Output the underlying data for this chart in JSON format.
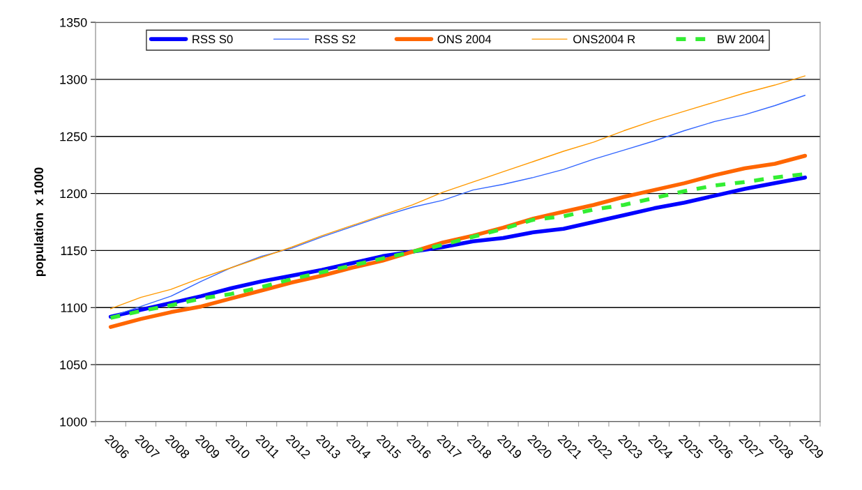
{
  "chart_data": {
    "type": "line",
    "ylabel": "population  x 1000",
    "categories": [
      "2006",
      "2007",
      "2008",
      "2009",
      "2010",
      "2011",
      "2012",
      "2013",
      "2014",
      "2015",
      "2016",
      "2017",
      "2018",
      "2019",
      "2020",
      "2021",
      "2022",
      "2023",
      "2024",
      "2025",
      "2026",
      "2027",
      "2028",
      "2029"
    ],
    "series": [
      {
        "name": "RSS S0",
        "color": "#0000ff",
        "values": [
          1092,
          1098,
          1104,
          1110,
          1117,
          1123,
          1128,
          1133,
          1139,
          1145,
          1149,
          1153,
          1158,
          1161,
          1166,
          1169,
          1175,
          1181,
          1187,
          1192,
          1198,
          1204,
          1209,
          1214
        ]
      },
      {
        "name": "RSS S2",
        "color": "#3366ff",
        "values": [
          1092,
          1101,
          1110,
          1123,
          1135,
          1145,
          1152,
          1162,
          1171,
          1180,
          1188,
          1194,
          1203,
          1208,
          1214,
          1221,
          1230,
          1238,
          1246,
          1255,
          1263,
          1269,
          1277,
          1286
        ]
      },
      {
        "name": "ONS 2004",
        "color": "#ff6600",
        "values": [
          1083,
          1090,
          1096,
          1101,
          1108,
          1115,
          1122,
          1128,
          1135,
          1141,
          1149,
          1157,
          1163,
          1170,
          1178,
          1184,
          1190,
          1197,
          1203,
          1209,
          1216,
          1222,
          1226,
          1233
        ]
      },
      {
        "name": "ONS2004 R",
        "color": "#ff9900",
        "values": [
          1099,
          1109,
          1116,
          1126,
          1135,
          1144,
          1153,
          1163,
          1172,
          1181,
          1190,
          1201,
          1210,
          1219,
          1228,
          1237,
          1245,
          1255,
          1264,
          1272,
          1280,
          1288,
          1295,
          1303
        ]
      },
      {
        "name": "BW 2004",
        "color": "#33ee33",
        "line_style": "dashed",
        "values": [
          1091,
          1097,
          1102,
          1108,
          1112,
          1118,
          1125,
          1131,
          1137,
          1143,
          1149,
          1155,
          1162,
          1169,
          1177,
          1180,
          1186,
          1190,
          1196,
          1202,
          1207,
          1210,
          1214,
          1217
        ]
      }
    ],
    "ylim": [
      1000,
      1350
    ],
    "yticks": [
      1000,
      1050,
      1100,
      1150,
      1200,
      1250,
      1300,
      1350
    ],
    "grid": "y",
    "legend": "top",
    "line_style": "solid",
    "marker": "none"
  }
}
